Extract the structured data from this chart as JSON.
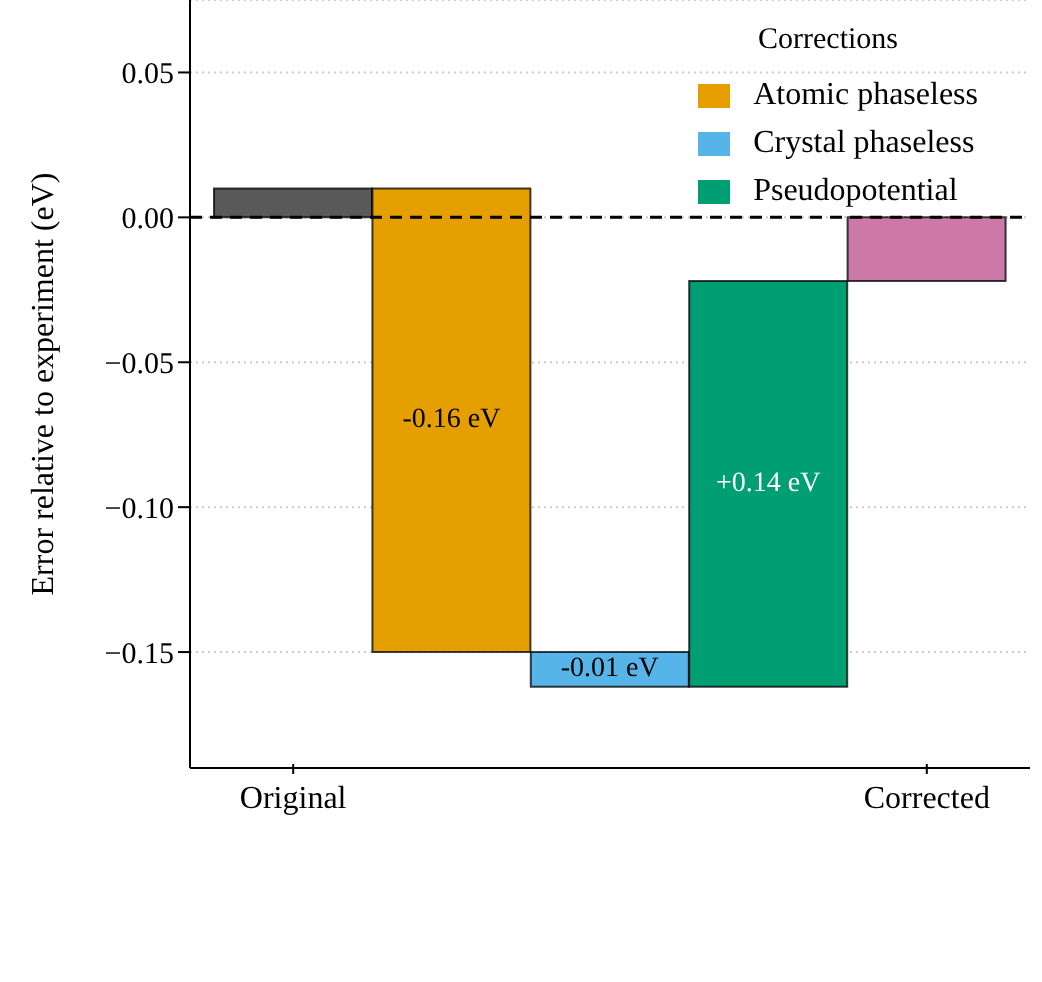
{
  "chart_data": {
    "type": "bar",
    "ylabel": "Error relative to experiment (eV)",
    "legend_title": "Corrections",
    "legend": "top right",
    "grid": "y",
    "categories": [
      "Original",
      null,
      null,
      null,
      "Corrected"
    ],
    "series": [
      {
        "color": "#595959",
        "values": [
          0.01,
          null,
          null,
          null,
          null
        ],
        "base": [
          0,
          null,
          null,
          null,
          null
        ]
      },
      {
        "name": "Atomic phaseless",
        "color": "#e69f00",
        "values": [
          null,
          -0.16,
          null,
          null,
          null
        ],
        "base": [
          null,
          0.01,
          null,
          null,
          null
        ],
        "value_labels": [
          null,
          "-0.16 eV",
          null,
          null,
          null
        ]
      },
      {
        "name": "Crystal phaseless",
        "color": "#56b4e9",
        "values": [
          null,
          null,
          -0.012,
          null,
          null
        ],
        "base": [
          null,
          null,
          -0.15,
          null,
          null
        ],
        "value_labels": [
          null,
          null,
          "-0.01 eV",
          null,
          null
        ]
      },
      {
        "name": "Pseudopotential",
        "color": "#009e73",
        "values": [
          null,
          null,
          null,
          0.14,
          null
        ],
        "base": [
          null,
          null,
          null,
          -0.162,
          null
        ],
        "value_labels": [
          null,
          null,
          null,
          "+0.14 eV",
          null
        ]
      },
      {
        "color": "#cc79a7",
        "values": [
          null,
          null,
          null,
          null,
          -0.022
        ],
        "base": [
          null,
          null,
          null,
          null,
          0
        ]
      }
    ],
    "ylim": [
      -0.19,
      0.075
    ],
    "yticks": [
      {
        "value": -0.15,
        "label": "−0.15"
      },
      {
        "value": -0.1,
        "label": "−0.10"
      },
      {
        "value": -0.05,
        "label": "−0.05"
      },
      {
        "value": 0,
        "label": "0.00"
      },
      {
        "value": 0.05,
        "label": "0.05"
      }
    ],
    "ref_lines": [
      {
        "axis": "y",
        "value": 0,
        "color": "#000000",
        "line_style": "dashed"
      }
    ]
  }
}
